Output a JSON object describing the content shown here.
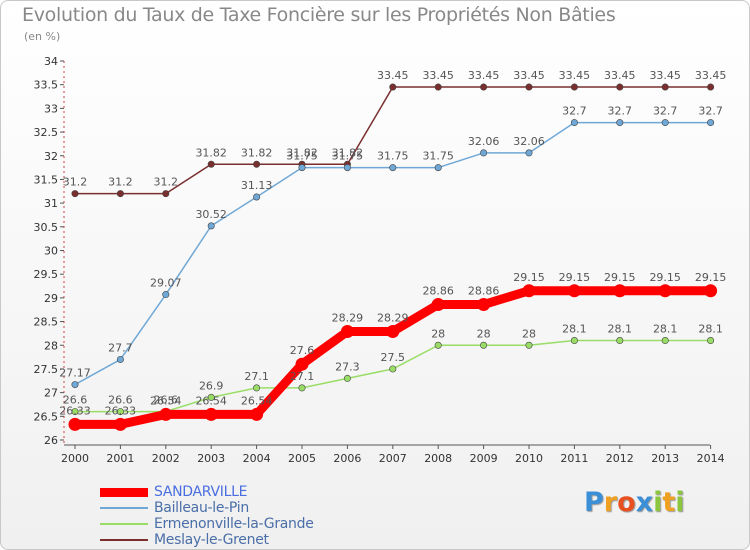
{
  "title": "Evolution du Taux de Taxe Foncière sur les Propriétés Non Bâties",
  "unit_label": "(en %)",
  "logo": {
    "letters": [
      "P",
      "r",
      "o",
      "x",
      "i",
      "t",
      "i"
    ],
    "colors": [
      "#3a8fd6",
      "#f0a020",
      "#e85020",
      "#3a8fd6",
      "#8cc63f",
      "#f0a020",
      "#8cc63f"
    ]
  },
  "chart_data": {
    "type": "line",
    "title": "Evolution du Taux de Taxe Foncière sur les Propriétés Non Bâties",
    "ylabel": "(en %)",
    "xlabel": "",
    "x": [
      "2000",
      "2001",
      "2002",
      "2003",
      "2004",
      "2005",
      "2006",
      "2007",
      "2008",
      "2009",
      "2010",
      "2011",
      "2012",
      "2013",
      "2014"
    ],
    "ylim": [
      26,
      34
    ],
    "yticks": [
      "26",
      "26.5",
      "27",
      "27.5",
      "28",
      "28.5",
      "29",
      "29.5",
      "30",
      "30.5",
      "31",
      "31.5",
      "32",
      "32.5",
      "33",
      "33.5",
      "34"
    ],
    "grid": false,
    "legend_placement": "bottom-left",
    "series": [
      {
        "name": "SANDARVILLE",
        "color": "#ff0000",
        "values": [
          26.33,
          26.33,
          26.54,
          26.54,
          26.54,
          27.6,
          28.29,
          28.29,
          28.86,
          28.86,
          29.15,
          29.15,
          29.15,
          29.15,
          29.15
        ],
        "labels": [
          "26.33",
          "26.33",
          "26.54",
          "26.54",
          "26.54",
          "27.6",
          "28.29",
          "28.29",
          "28.86",
          "28.86",
          "29.15",
          "29.15",
          "29.15",
          "29.15",
          "29.15"
        ]
      },
      {
        "name": "Bailleau-le-Pin",
        "color": "#6fa8d6",
        "values": [
          27.17,
          27.7,
          29.07,
          30.52,
          31.13,
          31.75,
          31.75,
          31.75,
          31.75,
          32.06,
          32.06,
          32.7,
          32.7,
          32.7,
          32.7
        ],
        "labels": [
          "27.17",
          "27.7",
          "29.07",
          "30.52",
          "31.13",
          "31.75",
          "31.75",
          "31.75",
          "31.75",
          "32.06",
          "32.06",
          "32.7",
          "32.7",
          "32.7",
          "32.7"
        ]
      },
      {
        "name": "Ermenonville-la-Grande",
        "color": "#99dd66",
        "values": [
          26.6,
          26.6,
          26.6,
          26.9,
          27.1,
          27.1,
          27.3,
          27.5,
          28,
          28,
          28,
          28.1,
          28.1,
          28.1,
          28.1
        ],
        "labels": [
          "26.6",
          "26.6",
          "26.6",
          "26.9",
          "27.1",
          "27.1",
          "27.3",
          "27.5",
          "28",
          "28",
          "28",
          "28.1",
          "28.1",
          "28.1",
          "28.1"
        ]
      },
      {
        "name": "Meslay-le-Grenet",
        "color": "#7a2e2e",
        "values": [
          31.2,
          31.2,
          31.2,
          31.82,
          31.82,
          31.82,
          31.82,
          33.45,
          33.45,
          33.45,
          33.45,
          33.45,
          33.45,
          33.45,
          33.45
        ],
        "labels": [
          "31.2",
          "31.2",
          "31.2",
          "31.82",
          "31.82",
          "31.82",
          "31.82",
          "33.45",
          "33.45",
          "33.45",
          "33.45",
          "33.45",
          "33.45",
          "33.45",
          "33.45"
        ]
      }
    ]
  }
}
